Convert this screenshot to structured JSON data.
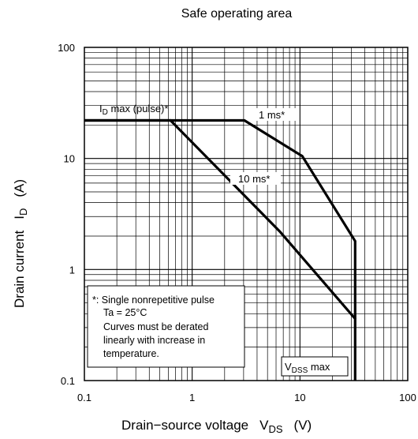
{
  "chart_data": {
    "type": "line",
    "title": "Safe operating area",
    "xlabel": {
      "main": "Drain−source voltage",
      "symbol": "V",
      "subscript": "DS",
      "unit": "(V)"
    },
    "ylabel": {
      "main": "Drain current",
      "symbol": "I",
      "subscript": "D",
      "unit": "(A)"
    },
    "xscale": "log",
    "yscale": "log",
    "xlim": [
      0.1,
      100
    ],
    "ylim": [
      0.1,
      100
    ],
    "x_ticks": [
      "0.1",
      "1",
      "10",
      "100"
    ],
    "y_ticks": [
      "0.1",
      "1",
      "10",
      "100"
    ],
    "grid": true,
    "series": [
      {
        "x": [
          0.1,
          0.63,
          6.5,
          32.5,
          32.5
        ],
        "y": [
          22,
          22,
          2.2,
          0.36,
          0.1
        ]
      },
      {
        "x": [
          0.1,
          3.05,
          10.5,
          32.5,
          32.5
        ],
        "y": [
          22,
          22,
          10.5,
          1.8,
          0.36
        ]
      }
    ],
    "labels": {
      "id_max": {
        "main": "I",
        "subscript": "D",
        "rest": " max (pulse)*"
      },
      "curve_1ms": "1 ms*",
      "curve_10ms": "10 ms*",
      "vdss_max": {
        "main": "V",
        "subscript": "DSS",
        "rest": " max"
      }
    },
    "note_lines": [
      "*: Single nonrepetitive pulse",
      "Ta = 25°C",
      "Curves must be derated",
      "linearly with increase in",
      "temperature."
    ]
  }
}
